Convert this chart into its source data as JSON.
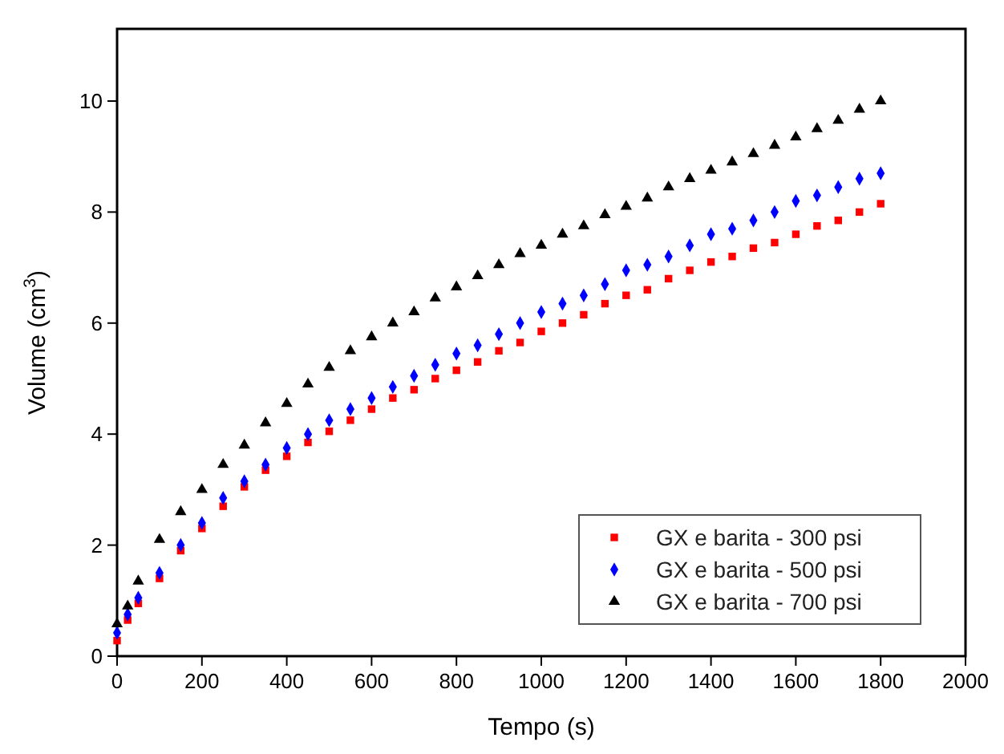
{
  "chart_data": {
    "type": "scatter",
    "xlabel": "Tempo (s)",
    "ylabel": "Volume (cm$^{3}$)",
    "x": [
      0,
      25,
      50,
      100,
      150,
      200,
      250,
      300,
      350,
      400,
      450,
      500,
      550,
      600,
      650,
      700,
      750,
      800,
      850,
      900,
      950,
      1000,
      1050,
      1100,
      1150,
      1200,
      1250,
      1300,
      1350,
      1400,
      1450,
      1500,
      1550,
      1600,
      1650,
      1700,
      1750,
      1800
    ],
    "xlim": [
      0,
      2000
    ],
    "xticks": [
      0,
      200,
      400,
      600,
      800,
      1000,
      1200,
      1400,
      1600,
      1800,
      2000
    ],
    "ylim": [
      0,
      11.3
    ],
    "yticks": [
      0,
      2,
      4,
      6,
      8,
      10
    ],
    "legend": "bottom right",
    "grid": false,
    "series": [
      {
        "name": "GX e barita - 300 psi",
        "color": "#ff0000",
        "marker": "square",
        "values": [
          0.28,
          0.65,
          0.95,
          1.4,
          1.9,
          2.3,
          2.7,
          3.05,
          3.35,
          3.6,
          3.85,
          4.05,
          4.25,
          4.45,
          4.65,
          4.8,
          5.0,
          5.15,
          5.3,
          5.5,
          5.65,
          5.85,
          6.0,
          6.15,
          6.35,
          6.5,
          6.6,
          6.8,
          6.95,
          7.1,
          7.2,
          7.35,
          7.45,
          7.6,
          7.75,
          7.85,
          8.0,
          8.15
        ]
      },
      {
        "name": "GX e barita - 500 psi",
        "color": "#0000ff",
        "marker": "diamond",
        "values": [
          0.42,
          0.75,
          1.05,
          1.5,
          2.0,
          2.4,
          2.85,
          3.15,
          3.45,
          3.75,
          4.0,
          4.25,
          4.45,
          4.65,
          4.85,
          5.05,
          5.25,
          5.45,
          5.6,
          5.8,
          6.0,
          6.2,
          6.35,
          6.5,
          6.7,
          6.95,
          7.05,
          7.2,
          7.4,
          7.6,
          7.7,
          7.85,
          8.0,
          8.2,
          8.3,
          8.45,
          8.6,
          8.7
        ]
      },
      {
        "name": "GX e barita - 700 psi",
        "color": "#000000",
        "marker": "triangle",
        "values": [
          0.58,
          0.9,
          1.35,
          2.1,
          2.6,
          3.0,
          3.45,
          3.8,
          4.2,
          4.55,
          4.9,
          5.2,
          5.5,
          5.75,
          6.0,
          6.2,
          6.45,
          6.65,
          6.85,
          7.05,
          7.25,
          7.4,
          7.6,
          7.75,
          7.95,
          8.1,
          8.25,
          8.45,
          8.6,
          8.75,
          8.9,
          9.05,
          9.2,
          9.35,
          9.5,
          9.65,
          9.85,
          10.0
        ]
      }
    ]
  }
}
